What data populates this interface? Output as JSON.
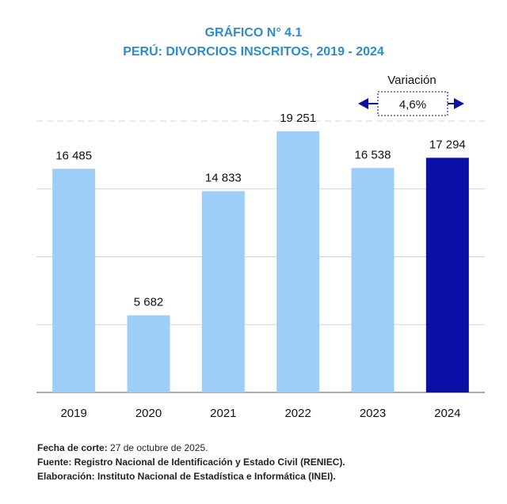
{
  "chart_data": {
    "type": "bar",
    "title": "GRÁFICO N° 4.1",
    "subtitle": "PERÚ: DIVORCIOS INSCRITOS, 2019 - 2024",
    "categories": [
      "2019",
      "2020",
      "2021",
      "2022",
      "2023",
      "2024"
    ],
    "values": [
      16485,
      5682,
      14833,
      19251,
      16538,
      17294
    ],
    "value_labels": [
      "16 485",
      "5 682",
      "14 833",
      "19 251",
      "16 538",
      "17 294"
    ],
    "ylim": [
      0,
      20000
    ],
    "grid": true,
    "y_tick_labels_shown": false,
    "colors": {
      "default": "#9dcef7",
      "highlight": "#0a10a6",
      "title": "#2f8ccc"
    },
    "highlight_category": "2024",
    "annotation": {
      "label": "Variación",
      "value": "4,6%"
    }
  },
  "notes": {
    "cutoff_label": "Fecha de corte:",
    "cutoff_value": "27 de octubre de 2025.",
    "source": "Fuente: Registro Nacional de Identificación y Estado Civil (RENIEC).",
    "elaboration": "Elaboración: Instituto Nacional de Estadística e Informática (INEI)."
  }
}
